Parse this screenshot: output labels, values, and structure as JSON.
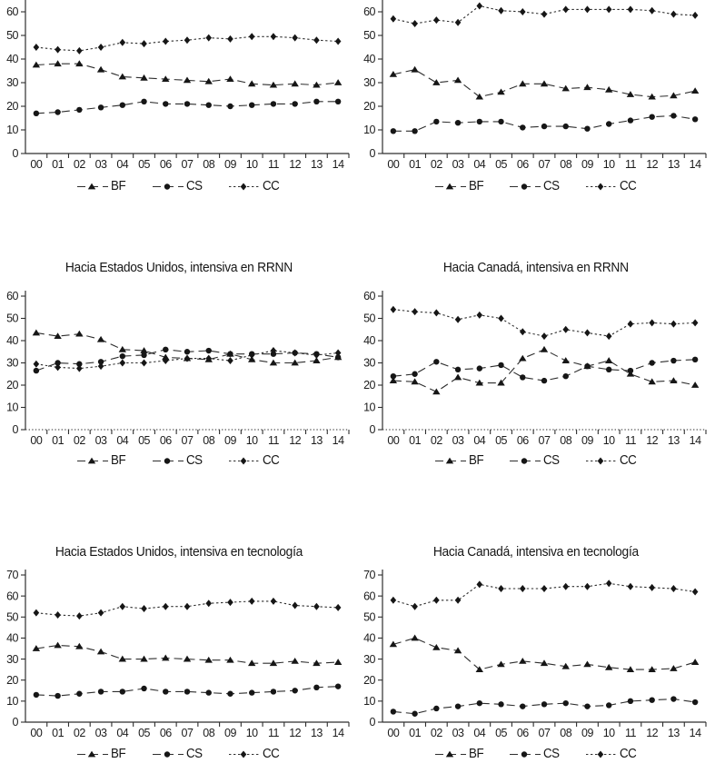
{
  "page": {
    "background": "#ffffff",
    "line_color": "#2e2e2e",
    "marker_color": "#161616",
    "text_color": "#1c1c1c"
  },
  "chart_data": [
    {
      "id": "top-left",
      "type": "line",
      "title": "",
      "categories": [
        "00",
        "01",
        "02",
        "03",
        "04",
        "05",
        "06",
        "07",
        "08",
        "09",
        "10",
        "11",
        "12",
        "13",
        "14"
      ],
      "ylim": [
        0,
        60
      ],
      "ytick_step": 10,
      "grid": false,
      "legend_position": "bottom",
      "xaxis_line": "solid",
      "series": [
        {
          "name": "BF",
          "marker": "triangle",
          "line_style": "dashed",
          "values": [
            37.5,
            38,
            38,
            35.5,
            32.5,
            32,
            31.5,
            31,
            30.5,
            31.5,
            29.5,
            29,
            29.5,
            29,
            30
          ]
        },
        {
          "name": "CS",
          "marker": "circle",
          "line_style": "dashed",
          "values": [
            17,
            17.5,
            18.5,
            19.5,
            20.5,
            22,
            21,
            21,
            20.5,
            20,
            20.5,
            21,
            21,
            22,
            22
          ]
        },
        {
          "name": "CC",
          "marker": "diamond",
          "line_style": "dotted",
          "values": [
            45,
            44,
            43.5,
            45,
            47,
            46.5,
            47.5,
            48,
            49,
            48.5,
            49.5,
            49.5,
            49,
            48,
            47.5
          ]
        }
      ]
    },
    {
      "id": "top-right",
      "type": "line",
      "title": "",
      "categories": [
        "00",
        "01",
        "02",
        "03",
        "04",
        "05",
        "06",
        "07",
        "08",
        "09",
        "10",
        "11",
        "12",
        "13",
        "14"
      ],
      "ylim": [
        0,
        60
      ],
      "ytick_step": 10,
      "grid": false,
      "legend_position": "bottom",
      "xaxis_line": "solid",
      "series": [
        {
          "name": "BF",
          "marker": "triangle",
          "line_style": "dashed",
          "values": [
            33.5,
            35.5,
            30,
            31,
            24,
            26,
            29.5,
            29.5,
            27.5,
            28,
            27,
            25,
            24,
            24.5,
            26.5
          ]
        },
        {
          "name": "CS",
          "marker": "circle",
          "line_style": "dashed",
          "values": [
            9.5,
            9.5,
            13.5,
            13,
            13.5,
            13.5,
            11,
            11.5,
            11.5,
            10.5,
            12.5,
            14,
            15.5,
            16,
            14.5
          ]
        },
        {
          "name": "CC",
          "marker": "diamond",
          "line_style": "dotted",
          "values": [
            57,
            55,
            56.5,
            55.5,
            62.5,
            60.5,
            60,
            59,
            61,
            61,
            61,
            61,
            60.5,
            59,
            58.5
          ]
        }
      ]
    },
    {
      "id": "mid-left",
      "type": "line",
      "title": "Hacia Estados Unidos, intensiva en RRNN",
      "categories": [
        "00",
        "01",
        "02",
        "03",
        "04",
        "05",
        "06",
        "07",
        "08",
        "09",
        "10",
        "11",
        "12",
        "13",
        "14"
      ],
      "ylim": [
        0,
        60
      ],
      "ytick_step": 10,
      "grid": false,
      "legend_position": "bottom",
      "xaxis_line": "dotted",
      "series": [
        {
          "name": "BF",
          "marker": "triangle",
          "line_style": "dashed",
          "values": [
            43.5,
            42,
            43,
            40.5,
            36,
            35.5,
            32.5,
            32,
            31.5,
            34,
            31.5,
            30,
            30,
            31,
            32.5
          ]
        },
        {
          "name": "CS",
          "marker": "circle",
          "line_style": "dashed",
          "values": [
            26.5,
            30,
            29.5,
            30.5,
            33,
            33.5,
            36,
            35,
            35.5,
            34,
            34,
            34,
            34.5,
            34,
            32.5
          ]
        },
        {
          "name": "CC",
          "marker": "diamond",
          "line_style": "dotted",
          "values": [
            29.5,
            28,
            27.5,
            28.5,
            30,
            30,
            31,
            32,
            32,
            31,
            33.5,
            35.5,
            34.5,
            33.5,
            34.5
          ]
        }
      ]
    },
    {
      "id": "mid-right",
      "type": "line",
      "title": "Hacia Canadá, intensiva en RRNN",
      "categories": [
        "00",
        "01",
        "02",
        "03",
        "04",
        "05",
        "06",
        "07",
        "08",
        "09",
        "10",
        "11",
        "12",
        "13",
        "14"
      ],
      "ylim": [
        0,
        60
      ],
      "ytick_step": 10,
      "grid": false,
      "legend_position": "bottom",
      "xaxis_line": "dotted",
      "series": [
        {
          "name": "BF",
          "marker": "triangle",
          "line_style": "dashed",
          "values": [
            22,
            21.5,
            17,
            23.5,
            21,
            21,
            32,
            36,
            31,
            28.5,
            31,
            25,
            21.5,
            22,
            20
          ]
        },
        {
          "name": "CS",
          "marker": "circle",
          "line_style": "dashed",
          "values": [
            24,
            25,
            30.5,
            27,
            27.5,
            29,
            23.5,
            22,
            24,
            28.5,
            27,
            26.5,
            30,
            31,
            31.5
          ]
        },
        {
          "name": "CC",
          "marker": "diamond",
          "line_style": "dotted",
          "values": [
            54,
            53,
            52.5,
            49.5,
            51.5,
            50,
            44,
            42,
            45,
            43.5,
            42,
            47.5,
            48,
            47.5,
            48
          ]
        }
      ]
    },
    {
      "id": "bottom-left",
      "type": "line",
      "title": "Hacia Estados Unidos, intensiva en tecnología",
      "categories": [
        "00",
        "01",
        "02",
        "03",
        "04",
        "05",
        "06",
        "07",
        "08",
        "09",
        "10",
        "11",
        "12",
        "13",
        "14"
      ],
      "ylim": [
        0,
        70
      ],
      "ytick_step": 10,
      "grid": false,
      "legend_position": "bottom",
      "xaxis_line": "solid",
      "series": [
        {
          "name": "BF",
          "marker": "triangle",
          "line_style": "dashed",
          "values": [
            35,
            36.5,
            36,
            33.5,
            30,
            30,
            30.5,
            30,
            29.5,
            29.5,
            28,
            28,
            29,
            28,
            28.5
          ]
        },
        {
          "name": "CS",
          "marker": "circle",
          "line_style": "dashed",
          "values": [
            13,
            12.5,
            13.5,
            14.5,
            14.5,
            16,
            14.5,
            14.5,
            14,
            13.5,
            14,
            14.5,
            15,
            16.5,
            17
          ]
        },
        {
          "name": "CC",
          "marker": "diamond",
          "line_style": "dotted",
          "values": [
            52,
            51,
            50.5,
            52,
            55,
            54,
            55,
            55,
            56.5,
            57,
            57.5,
            57.5,
            55.5,
            55,
            54.5
          ]
        }
      ]
    },
    {
      "id": "bottom-right",
      "type": "line",
      "title": "Hacia Canadá, intensiva en tecnología",
      "categories": [
        "00",
        "01",
        "02",
        "03",
        "04",
        "05",
        "06",
        "07",
        "08",
        "09",
        "10",
        "11",
        "12",
        "13",
        "14"
      ],
      "ylim": [
        0,
        70
      ],
      "ytick_step": 10,
      "grid": false,
      "legend_position": "bottom",
      "xaxis_line": "solid",
      "series": [
        {
          "name": "BF",
          "marker": "triangle",
          "line_style": "dashed",
          "values": [
            37,
            40,
            35.5,
            34,
            25,
            27.5,
            29,
            28,
            26.5,
            27.5,
            26,
            25,
            25,
            25.5,
            28.5
          ]
        },
        {
          "name": "CS",
          "marker": "circle",
          "line_style": "dashed",
          "values": [
            5,
            4,
            6.5,
            7.5,
            9,
            8.5,
            7.5,
            8.5,
            9,
            7.5,
            8,
            10,
            10.5,
            11,
            9.5
          ]
        },
        {
          "name": "CC",
          "marker": "diamond",
          "line_style": "dotted",
          "values": [
            58,
            55,
            58,
            58,
            65.5,
            63.5,
            63.5,
            63.5,
            64.5,
            64.5,
            66,
            64.5,
            64,
            63.5,
            62
          ]
        }
      ]
    }
  ]
}
